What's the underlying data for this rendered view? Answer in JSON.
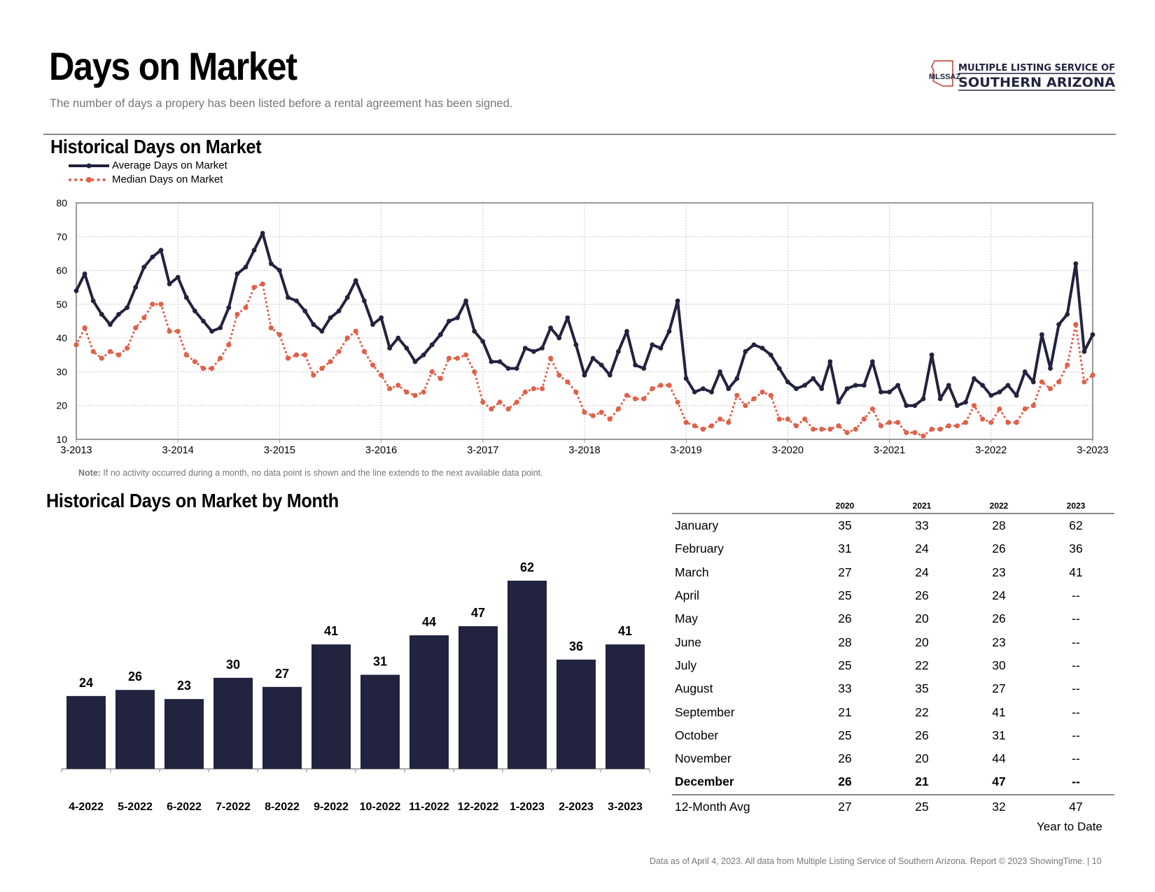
{
  "page": {
    "title": "Days on Market",
    "subtitle": "The number of days a propery has been listed before a rental agreement has been signed.",
    "logo": {
      "abbr": "MLSSAZ",
      "line1": "MULTIPLE LISTING SERVICE OF",
      "line2": "SOUTHERN ARIZONA"
    },
    "footer": "Data as of April 4, 2023. All data from Multiple Listing Service of Southern Arizona. Report © 2023 ShowingTime. |  10"
  },
  "historical": {
    "title": "Historical Days on Market",
    "note_label": "Note:",
    "note_text": " If no activity occurred during a month, no data point is shown and the line extends to the next available data point."
  },
  "by_month": {
    "title": "Historical Days on Market by Month"
  },
  "table": {
    "years": [
      "2020",
      "2021",
      "2022",
      "2023"
    ],
    "rows": [
      {
        "month": "January",
        "values": [
          "35",
          "33",
          "28",
          "62"
        ]
      },
      {
        "month": "February",
        "values": [
          "31",
          "24",
          "26",
          "36"
        ]
      },
      {
        "month": "March",
        "values": [
          "27",
          "24",
          "23",
          "41"
        ]
      },
      {
        "month": "April",
        "values": [
          "25",
          "26",
          "24",
          "--"
        ]
      },
      {
        "month": "May",
        "values": [
          "26",
          "20",
          "26",
          "--"
        ]
      },
      {
        "month": "June",
        "values": [
          "28",
          "20",
          "23",
          "--"
        ]
      },
      {
        "month": "July",
        "values": [
          "25",
          "22",
          "30",
          "--"
        ]
      },
      {
        "month": "August",
        "values": [
          "33",
          "35",
          "27",
          "--"
        ]
      },
      {
        "month": "September",
        "values": [
          "21",
          "22",
          "41",
          "--"
        ]
      },
      {
        "month": "October",
        "values": [
          "25",
          "26",
          "31",
          "--"
        ]
      },
      {
        "month": "November",
        "values": [
          "26",
          "20",
          "44",
          "--"
        ]
      },
      {
        "month": "December",
        "values": [
          "26",
          "21",
          "47",
          "--"
        ]
      }
    ],
    "avg": {
      "label": "12-Month Avg",
      "values": [
        "27",
        "25",
        "32",
        "47"
      ]
    },
    "ytd_label": "Year to Date"
  },
  "colors": {
    "navy": "#22233f",
    "orange": "#e0614a",
    "grid": "#c8c8c8"
  },
  "chart_data": [
    {
      "type": "line",
      "title": "Historical Days on Market",
      "xlabel": "",
      "ylabel": "",
      "ylim": [
        10,
        80
      ],
      "yticks": [
        10,
        20,
        30,
        40,
        50,
        60,
        70,
        80
      ],
      "x_tick_labels": [
        "3-2013",
        "3-2014",
        "3-2015",
        "3-2016",
        "3-2017",
        "3-2018",
        "3-2019",
        "3-2020",
        "3-2021",
        "3-2022",
        "3-2023"
      ],
      "x_range": [
        "3-2013",
        "3-2023"
      ],
      "grid": true,
      "legend": "top-left",
      "series": [
        {
          "name": "Average Days on Market",
          "color": "#22233f",
          "style": "solid",
          "values": [
            54,
            59,
            51,
            47,
            44,
            47,
            49,
            55,
            61,
            64,
            66,
            56,
            58,
            52,
            48,
            45,
            42,
            43,
            49,
            59,
            61,
            66,
            71,
            62,
            60,
            52,
            51,
            48,
            44,
            42,
            46,
            48,
            52,
            57,
            51,
            44,
            46,
            37,
            40,
            37,
            33,
            35,
            38,
            41,
            45,
            46,
            51,
            42,
            39,
            33,
            33,
            31,
            31,
            37,
            36,
            37,
            43,
            40,
            46,
            38,
            29,
            34,
            32,
            29,
            36,
            42,
            32,
            31,
            38,
            37,
            42,
            51,
            28,
            24,
            25,
            24,
            30,
            25,
            28,
            36,
            38,
            37,
            35,
            31,
            27,
            25,
            26,
            28,
            25,
            33,
            21,
            25,
            26,
            26,
            33,
            24,
            24,
            26,
            20,
            20,
            22,
            35,
            22,
            26,
            20,
            21,
            28,
            26,
            23,
            24,
            26,
            23,
            30,
            27,
            41,
            31,
            44,
            47,
            62,
            36,
            41
          ]
        },
        {
          "name": "Median Days on Market",
          "color": "#e0614a",
          "style": "dotted",
          "values": [
            38,
            43,
            36,
            34,
            36,
            35,
            37,
            43,
            46,
            50,
            50,
            42,
            42,
            35,
            33,
            31,
            31,
            34,
            38,
            47,
            49,
            55,
            56,
            43,
            41,
            34,
            35,
            35,
            29,
            31,
            33,
            36,
            40,
            42,
            36,
            32,
            29,
            25,
            26,
            24,
            23,
            24,
            30,
            28,
            34,
            34,
            35,
            30,
            21,
            19,
            21,
            19,
            21,
            24,
            25,
            25,
            34,
            29,
            27,
            24,
            18,
            17,
            18,
            16,
            19,
            23,
            22,
            22,
            25,
            26,
            26,
            21,
            15,
            14,
            13,
            14,
            16,
            15,
            23,
            20,
            22,
            24,
            23,
            16,
            16,
            14,
            16,
            13,
            13,
            13,
            14,
            12,
            13,
            16,
            19,
            14,
            15,
            15,
            12,
            12,
            11,
            13,
            13,
            14,
            14,
            15,
            20,
            16,
            15,
            19,
            15,
            15,
            19,
            20,
            27,
            25,
            27,
            32,
            44,
            27,
            29
          ]
        }
      ]
    },
    {
      "type": "bar",
      "title": "Historical Days on Market by Month",
      "categories": [
        "4-2022",
        "5-2022",
        "6-2022",
        "7-2022",
        "8-2022",
        "9-2022",
        "10-2022",
        "11-2022",
        "12-2022",
        "1-2023",
        "2-2023",
        "3-2023"
      ],
      "values": [
        24,
        26,
        23,
        30,
        27,
        41,
        31,
        44,
        47,
        62,
        36,
        41
      ],
      "ylim": [
        0,
        62
      ],
      "xlabel": "",
      "ylabel": "",
      "color": "#22233f"
    }
  ]
}
